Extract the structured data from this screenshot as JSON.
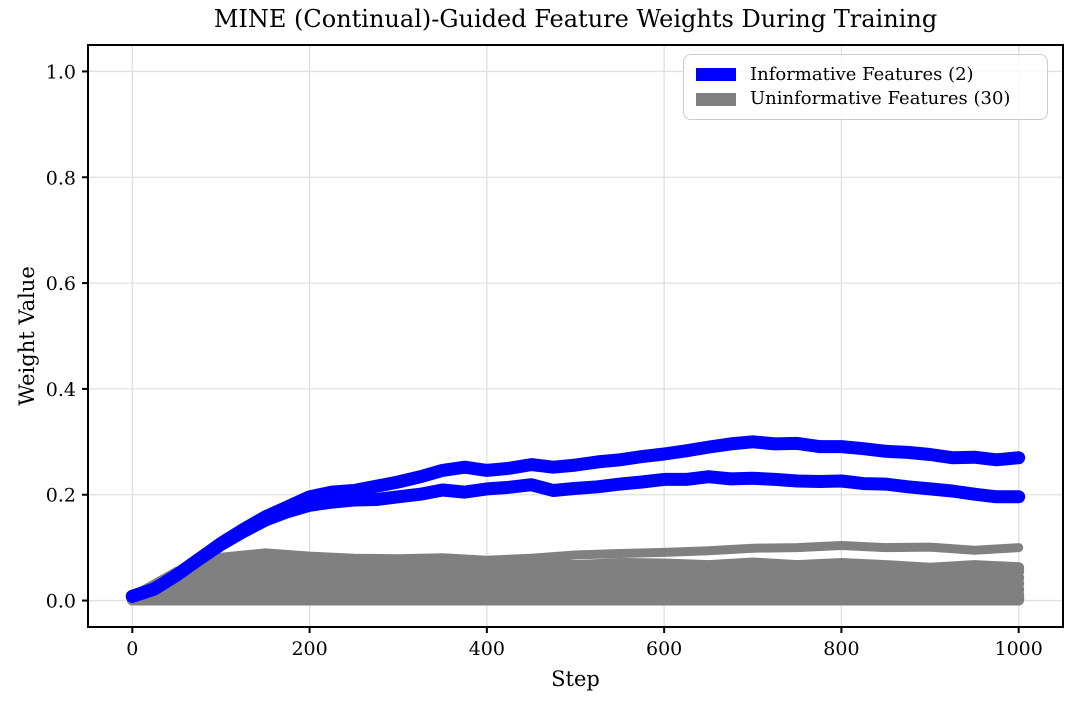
{
  "chart_data": {
    "type": "line",
    "title": "MINE (Continual)-Guided Feature Weights During Training",
    "xlabel": "Step",
    "ylabel": "Weight Value",
    "xlim": [
      -50,
      1050
    ],
    "ylim": [
      -0.05,
      1.05
    ],
    "xticks": [
      0,
      200,
      400,
      600,
      800,
      1000
    ],
    "xtick_labels": [
      "0",
      "200",
      "400",
      "600",
      "800",
      "1000"
    ],
    "yticks": [
      0.0,
      0.2,
      0.4,
      0.6,
      0.8,
      1.0
    ],
    "ytick_labels": [
      "0.0",
      "0.2",
      "0.4",
      "0.6",
      "0.8",
      "1.0"
    ],
    "grid": true,
    "grid_color": "#e0e0e0",
    "spine_color": "#000000",
    "legend": {
      "position": "upper right",
      "entries": [
        {
          "label": "Informative Features (2)",
          "color": "#0000ff",
          "count": 2
        },
        {
          "label": "Uninformative Features (30)",
          "color": "#808080",
          "count": 30
        }
      ]
    },
    "series": [
      {
        "name": "uninformative_9",
        "group": "uninformative",
        "color": "#808080",
        "lw": 11,
        "x": [
          0,
          50,
          100,
          150,
          200,
          250,
          300,
          350,
          400,
          450,
          500,
          550,
          600,
          650,
          700,
          750,
          800,
          850,
          900,
          950,
          1000
        ],
        "y": [
          0.001,
          0.001,
          0.001,
          0.001,
          0.001,
          0.001,
          0.001,
          0.001,
          0.001,
          0.001,
          0.001,
          0.001,
          0.001,
          0.001,
          0.001,
          0.001,
          0.001,
          0.001,
          0.001,
          0.001,
          0.001
        ]
      },
      {
        "name": "uninformative_8",
        "group": "uninformative",
        "color": "#808080",
        "lw": 11,
        "x": [
          0,
          50,
          100,
          150,
          200,
          250,
          300,
          350,
          400,
          450,
          500,
          550,
          600,
          650,
          700,
          750,
          800,
          850,
          900,
          950,
          1000
        ],
        "y": [
          0.002,
          0.005,
          0.006,
          0.005,
          0.004,
          0.005,
          0.004,
          0.005,
          0.004,
          0.005,
          0.004,
          0.005,
          0.004,
          0.005,
          0.004,
          0.005,
          0.004,
          0.005,
          0.004,
          0.005,
          0.004
        ]
      },
      {
        "name": "uninformative_7",
        "group": "uninformative",
        "color": "#808080",
        "lw": 11,
        "x": [
          0,
          50,
          100,
          150,
          200,
          250,
          300,
          350,
          400,
          450,
          500,
          550,
          600,
          650,
          700,
          750,
          800,
          850,
          900,
          950,
          1000
        ],
        "y": [
          0.002,
          0.01,
          0.015,
          0.016,
          0.014,
          0.013,
          0.014,
          0.012,
          0.014,
          0.012,
          0.013,
          0.012,
          0.014,
          0.011,
          0.013,
          0.011,
          0.012,
          0.01,
          0.012,
          0.01,
          0.011
        ]
      },
      {
        "name": "uninformative_6",
        "group": "uninformative",
        "color": "#808080",
        "lw": 11,
        "x": [
          0,
          50,
          100,
          150,
          200,
          250,
          300,
          350,
          400,
          450,
          500,
          550,
          600,
          650,
          700,
          750,
          800,
          850,
          900,
          950,
          1000
        ],
        "y": [
          0.003,
          0.016,
          0.026,
          0.028,
          0.025,
          0.023,
          0.025,
          0.022,
          0.025,
          0.022,
          0.024,
          0.022,
          0.025,
          0.021,
          0.024,
          0.021,
          0.023,
          0.02,
          0.022,
          0.019,
          0.021
        ]
      },
      {
        "name": "uninformative_5",
        "group": "uninformative",
        "color": "#808080",
        "lw": 11,
        "x": [
          0,
          50,
          100,
          150,
          200,
          250,
          300,
          350,
          400,
          450,
          500,
          550,
          600,
          650,
          700,
          750,
          800,
          850,
          900,
          950,
          1000
        ],
        "y": [
          0.004,
          0.024,
          0.036,
          0.04,
          0.036,
          0.034,
          0.036,
          0.033,
          0.036,
          0.032,
          0.035,
          0.033,
          0.036,
          0.032,
          0.035,
          0.031,
          0.034,
          0.031,
          0.033,
          0.03,
          0.032
        ]
      },
      {
        "name": "uninformative_4",
        "group": "uninformative",
        "color": "#808080",
        "lw": 11,
        "x": [
          0,
          50,
          100,
          150,
          200,
          250,
          300,
          350,
          400,
          450,
          500,
          550,
          600,
          650,
          700,
          750,
          800,
          850,
          900,
          950,
          1000
        ],
        "y": [
          0.004,
          0.03,
          0.048,
          0.052,
          0.047,
          0.044,
          0.047,
          0.044,
          0.047,
          0.043,
          0.046,
          0.044,
          0.047,
          0.043,
          0.046,
          0.042,
          0.045,
          0.042,
          0.044,
          0.04,
          0.043
        ]
      },
      {
        "name": "uninformative_3",
        "group": "uninformative",
        "color": "#808080",
        "lw": 11,
        "x": [
          0,
          50,
          100,
          150,
          200,
          250,
          300,
          350,
          400,
          450,
          500,
          550,
          600,
          650,
          700,
          750,
          800,
          850,
          900,
          950,
          1000
        ],
        "y": [
          0.005,
          0.038,
          0.06,
          0.065,
          0.061,
          0.057,
          0.06,
          0.056,
          0.059,
          0.056,
          0.06,
          0.057,
          0.061,
          0.056,
          0.06,
          0.056,
          0.059,
          0.055,
          0.056,
          0.052,
          0.055
        ]
      },
      {
        "name": "uninformative_2",
        "group": "uninformative",
        "color": "#808080",
        "lw": 11,
        "x": [
          0,
          50,
          100,
          150,
          200,
          250,
          300,
          350,
          400,
          450,
          500,
          550,
          600,
          650,
          700,
          750,
          800,
          850,
          900,
          950,
          1000
        ],
        "y": [
          0.006,
          0.045,
          0.072,
          0.076,
          0.071,
          0.066,
          0.07,
          0.066,
          0.07,
          0.071,
          0.066,
          0.07,
          0.069,
          0.066,
          0.071,
          0.066,
          0.07,
          0.066,
          0.061,
          0.066,
          0.062
        ]
      },
      {
        "name": "uninformative_1_outlier",
        "group": "uninformative",
        "color": "#808080",
        "lw": 9,
        "x": [
          0,
          50,
          100,
          150,
          200,
          250,
          300,
          350,
          400,
          450,
          500,
          550,
          600,
          650,
          700,
          750,
          800,
          850,
          900,
          950,
          1000
        ],
        "y": [
          0.008,
          0.055,
          0.082,
          0.09,
          0.084,
          0.08,
          0.079,
          0.081,
          0.076,
          0.08,
          0.086,
          0.089,
          0.091,
          0.094,
          0.099,
          0.1,
          0.104,
          0.1,
          0.101,
          0.095,
          0.1
        ]
      },
      {
        "name": "informative_2",
        "group": "informative",
        "color": "#0000ff",
        "lw": 13,
        "x": [
          0,
          25,
          50,
          75,
          100,
          125,
          150,
          175,
          200,
          225,
          250,
          275,
          300,
          325,
          350,
          375,
          400,
          425,
          450,
          475,
          500,
          525,
          550,
          575,
          600,
          625,
          650,
          675,
          700,
          725,
          750,
          775,
          800,
          825,
          850,
          875,
          900,
          925,
          950,
          975,
          1000
        ],
        "y": [
          0.008,
          0.022,
          0.048,
          0.078,
          0.106,
          0.13,
          0.152,
          0.168,
          0.18,
          0.186,
          0.19,
          0.191,
          0.196,
          0.201,
          0.209,
          0.205,
          0.211,
          0.214,
          0.219,
          0.208,
          0.212,
          0.215,
          0.22,
          0.224,
          0.229,
          0.229,
          0.234,
          0.23,
          0.231,
          0.229,
          0.226,
          0.225,
          0.226,
          0.221,
          0.22,
          0.215,
          0.211,
          0.207,
          0.201,
          0.196,
          0.196
        ]
      },
      {
        "name": "informative_1",
        "group": "informative",
        "color": "#0000ff",
        "lw": 13,
        "x": [
          0,
          25,
          50,
          75,
          100,
          125,
          150,
          175,
          200,
          225,
          250,
          275,
          300,
          325,
          350,
          375,
          400,
          425,
          450,
          475,
          500,
          525,
          550,
          575,
          600,
          625,
          650,
          675,
          700,
          725,
          750,
          775,
          800,
          825,
          850,
          875,
          900,
          925,
          950,
          975,
          1000
        ],
        "y": [
          0.008,
          0.022,
          0.048,
          0.078,
          0.108,
          0.134,
          0.158,
          0.177,
          0.196,
          0.205,
          0.208,
          0.216,
          0.224,
          0.234,
          0.246,
          0.252,
          0.246,
          0.25,
          0.257,
          0.252,
          0.256,
          0.262,
          0.266,
          0.272,
          0.277,
          0.283,
          0.29,
          0.296,
          0.3,
          0.296,
          0.297,
          0.291,
          0.291,
          0.287,
          0.282,
          0.28,
          0.276,
          0.27,
          0.271,
          0.266,
          0.27
        ]
      }
    ]
  }
}
